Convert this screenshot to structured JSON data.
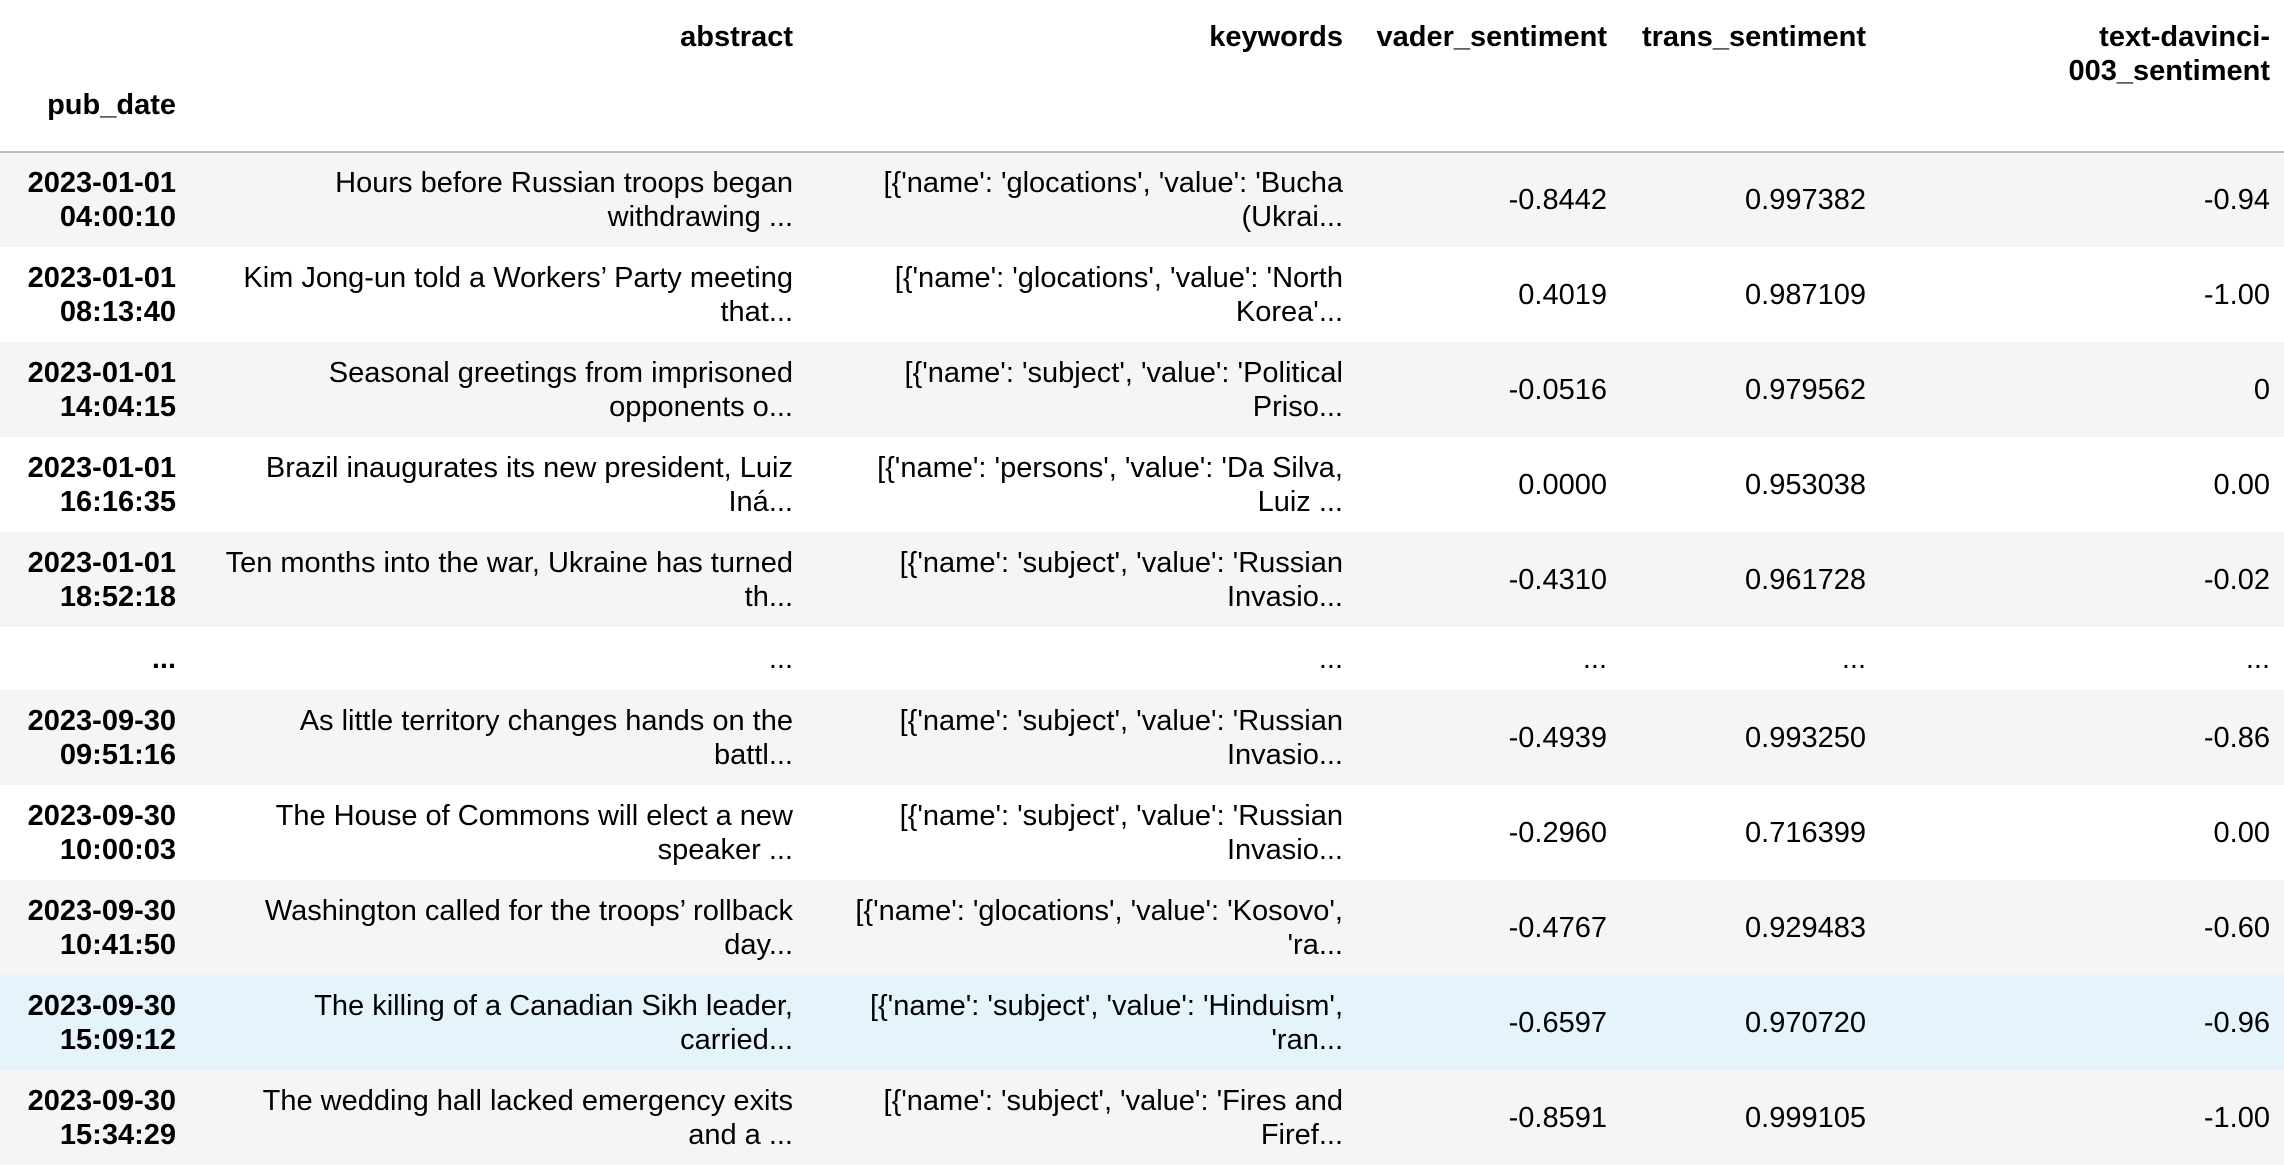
{
  "index_name": "pub_date",
  "columns": {
    "abstract": "abstract",
    "keywords": "keywords",
    "vader": "vader_sentiment",
    "trans": "trans_sentiment",
    "davinci_line1": "text-davinci-",
    "davinci_line2": "003_sentiment"
  },
  "rows": [
    {
      "date": "2023-01-01",
      "time": "04:00:10",
      "abstract_1": "Hours before Russian troops began",
      "abstract_2": "withdrawing ...",
      "keywords_1": "[{'name': 'glocations', 'value': 'Bucha",
      "keywords_2": "(Ukrai...",
      "vader": "-0.8442",
      "trans": "0.997382",
      "davinci": "-0.94"
    },
    {
      "date": "2023-01-01",
      "time": "08:13:40",
      "abstract_1": "Kim Jong-un told a Workers’ Party meeting",
      "abstract_2": "that...",
      "keywords_1": "[{'name': 'glocations', 'value': 'North",
      "keywords_2": "Korea'...",
      "vader": "0.4019",
      "trans": "0.987109",
      "davinci": "-1.00"
    },
    {
      "date": "2023-01-01",
      "time": "14:04:15",
      "abstract_1": "Seasonal greetings from imprisoned",
      "abstract_2": "opponents o...",
      "keywords_1": "[{'name': 'subject', 'value': 'Political",
      "keywords_2": "Priso...",
      "vader": "-0.0516",
      "trans": "0.979562",
      "davinci": "0"
    },
    {
      "date": "2023-01-01",
      "time": "16:16:35",
      "abstract_1": "Brazil inaugurates its new president, Luiz",
      "abstract_2": "Iná...",
      "keywords_1": "[{'name': 'persons', 'value': 'Da Silva,",
      "keywords_2": "Luiz ...",
      "vader": "0.0000",
      "trans": "0.953038",
      "davinci": "0.00"
    },
    {
      "date": "2023-01-01",
      "time": "18:52:18",
      "abstract_1": "Ten months into the war, Ukraine has turned",
      "abstract_2": "th...",
      "keywords_1": "[{'name': 'subject', 'value': 'Russian",
      "keywords_2": "Invasio...",
      "vader": "-0.4310",
      "trans": "0.961728",
      "davinci": "-0.02"
    }
  ],
  "ellipsis": "...",
  "rows_tail": [
    {
      "date": "2023-09-30",
      "time": "09:51:16",
      "abstract_1": "As little territory changes hands on the",
      "abstract_2": "battl...",
      "keywords_1": "[{'name': 'subject', 'value': 'Russian",
      "keywords_2": "Invasio...",
      "vader": "-0.4939",
      "trans": "0.993250",
      "davinci": "-0.86"
    },
    {
      "date": "2023-09-30",
      "time": "10:00:03",
      "abstract_1": "The House of Commons will elect a new",
      "abstract_2": "speaker ...",
      "keywords_1": "[{'name': 'subject', 'value': 'Russian",
      "keywords_2": "Invasio...",
      "vader": "-0.2960",
      "trans": "0.716399",
      "davinci": "0.00"
    },
    {
      "date": "2023-09-30",
      "time": "10:41:50",
      "abstract_1": "Washington called for the troops’ rollback",
      "abstract_2": "day...",
      "keywords_1": "[{'name': 'glocations', 'value': 'Kosovo',",
      "keywords_2": "'ra...",
      "vader": "-0.4767",
      "trans": "0.929483",
      "davinci": "-0.60"
    },
    {
      "date": "2023-09-30",
      "time": "15:09:12",
      "abstract_1": "The killing of a Canadian Sikh leader,",
      "abstract_2": "carried...",
      "keywords_1": "[{'name': 'subject', 'value': 'Hinduism',",
      "keywords_2": "'ran...",
      "vader": "-0.6597",
      "trans": "0.970720",
      "davinci": "-0.96"
    },
    {
      "date": "2023-09-30",
      "time": "15:34:29",
      "abstract_1": "The wedding hall lacked emergency exits",
      "abstract_2": "and a ...",
      "keywords_1": "[{'name': 'subject', 'value': 'Fires and",
      "keywords_2": "Firef...",
      "vader": "-0.8591",
      "trans": "0.999105",
      "davinci": "-1.00"
    }
  ],
  "colors": {
    "stripe": "#f5f5f5",
    "hover": "#e5f3fb",
    "header_rule": "#bdbdbd"
  }
}
